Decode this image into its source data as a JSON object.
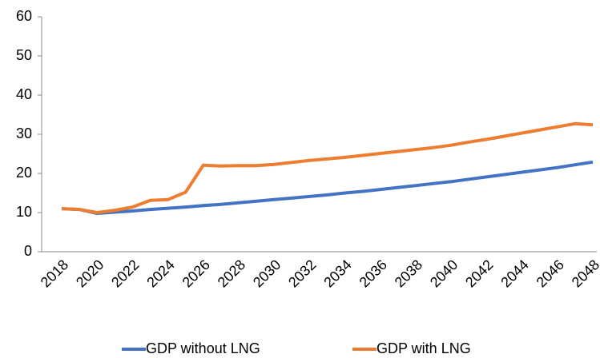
{
  "chart_data": {
    "type": "line",
    "categories": [
      "2018",
      null,
      "2020",
      null,
      "2022",
      null,
      "2024",
      null,
      "2026",
      null,
      "2028",
      null,
      "2030",
      null,
      "2032",
      null,
      "2034",
      null,
      "2036",
      null,
      "2038",
      null,
      "2040",
      null,
      "2042",
      null,
      "2044",
      null,
      "2046",
      null,
      "2048"
    ],
    "series": [
      {
        "name": "GDP without LNG",
        "color": "#4472c4",
        "values": [
          11,
          10.8,
          9.8,
          10.1,
          10.4,
          10.8,
          11.1,
          11.4,
          11.8,
          12.1,
          12.5,
          12.9,
          13.3,
          13.7,
          14.1,
          14.5,
          15.0,
          15.4,
          15.9,
          16.4,
          16.9,
          17.4,
          17.9,
          18.5,
          19.1,
          19.7,
          20.3,
          20.9,
          21.5,
          22.2,
          22.9
        ]
      },
      {
        "name": "GDP with LNG",
        "color": "#ed7d31",
        "values": [
          11,
          10.8,
          10.0,
          10.6,
          11.4,
          13.1,
          13.3,
          15.2,
          22.1,
          21.9,
          22.0,
          22.0,
          22.3,
          22.8,
          23.3,
          23.7,
          24.1,
          24.6,
          25.1,
          25.6,
          26.1,
          26.6,
          27.2,
          28.0,
          28.7,
          29.5,
          30.3,
          31.1,
          31.9,
          32.7,
          32.4
        ]
      }
    ],
    "ylim": [
      0,
      60
    ],
    "yticks": [
      0,
      10,
      20,
      30,
      40,
      50,
      60
    ],
    "grid": false,
    "legend": "bottom"
  }
}
